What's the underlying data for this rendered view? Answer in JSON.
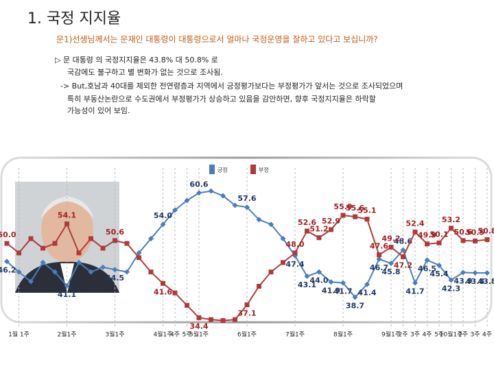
{
  "header": {
    "title": "1. 국정 지지율",
    "question": "문1)선생님께서는 문재인 대통령이 대통령으로서 얼마나 국정운영을 잘하고 있다고 보십니까?"
  },
  "bullets": [
    "▷  문 대통령 의 국정지지율은 43.8% 대 50.8% 로",
    "국감에도 불구하고 별 변화가 없는 것으로 조사됨.",
    "-> But,호남과 40대를 제외한 전연령층과 지역에서 긍정평가보다는 부정평가가 앞서는 것으로 조사되었으며",
    "특히 부동산논란으로 수도권에서 부정평가가 상승하고 있음을 감안하면, 향후 국정지지율은 하락할",
    "가능성이 있어 보임."
  ],
  "chart_data": {
    "type": "line",
    "categories": [
      null,
      "1월 1주",
      null,
      null,
      null,
      "2월1주",
      null,
      null,
      null,
      "3월1주",
      null,
      null,
      null,
      "4월1주",
      "4주",
      "5주",
      "5월1주",
      null,
      null,
      null,
      "6월1주",
      null,
      null,
      null,
      "7월1주",
      null,
      null,
      null,
      "8월1주",
      null,
      null,
      null,
      "9월1주",
      "2주",
      "3주",
      "4주",
      "5주",
      "10월1주",
      "2주",
      "3주",
      "4주"
    ],
    "ylim": [
      32,
      68
    ],
    "series": [
      {
        "name": "긍정",
        "color": "#4a7ebb",
        "values": [
          46.2,
          44,
          42,
          46,
          44,
          41.1,
          46,
          44,
          45,
          44.5,
          44,
          48,
          51,
          54.0,
          57,
          59,
          60.6,
          61,
          60,
          58,
          57.6,
          55,
          54,
          51,
          47.4,
          43.1,
          44.0,
          41.9,
          41.7,
          38.7,
          41.4,
          46.7,
          45.8,
          48.6,
          41.7,
          46.5,
          45.4,
          42.3,
          43.9,
          43.8,
          43.8
        ],
        "value_labels": [
          "46.2",
          null,
          null,
          null,
          null,
          "41.1",
          null,
          null,
          null,
          "44.5",
          null,
          null,
          null,
          "54.0",
          null,
          null,
          "60.6",
          null,
          null,
          null,
          "57.6",
          null,
          null,
          null,
          "47.4",
          "43.1",
          "44.0",
          "41.9",
          "41.7",
          "38.7",
          "41.4",
          "46.7",
          "45.8",
          "48.6",
          "41.7",
          "46.5",
          "45.4",
          "42.3",
          "43.9",
          "43.8",
          "43.8"
        ]
      },
      {
        "name": "부정",
        "color": "#b03a3a",
        "values": [
          50.0,
          48,
          51,
          49,
          50,
          54.1,
          48,
          51,
          49,
          50.6,
          50,
          47,
          44,
          41.6,
          39.6,
          37,
          34.4,
          34,
          33.8,
          34,
          37.1,
          41,
          44,
          46,
          48.0,
          52.6,
          51.2,
          52.9,
          55.9,
          55.6,
          55.1,
          47.6,
          49.2,
          47.2,
          52.4,
          49.9,
          50.1,
          53.2,
          50.6,
          50.5,
          50.8
        ],
        "value_labels": [
          "50.0",
          null,
          null,
          null,
          null,
          "54.1",
          null,
          null,
          null,
          "50.6",
          null,
          null,
          null,
          "41.6",
          null,
          null,
          "34.4",
          null,
          null,
          null,
          "37.1",
          null,
          null,
          null,
          "48.0",
          "52.6",
          "51.2",
          "52.9",
          "55.9",
          "55.6",
          "55.1",
          "47.6",
          "49.2",
          "47.2",
          "52.4",
          "49.9",
          "50.1",
          "53.2",
          "50.6",
          "50.5",
          "50.8"
        ]
      }
    ]
  }
}
